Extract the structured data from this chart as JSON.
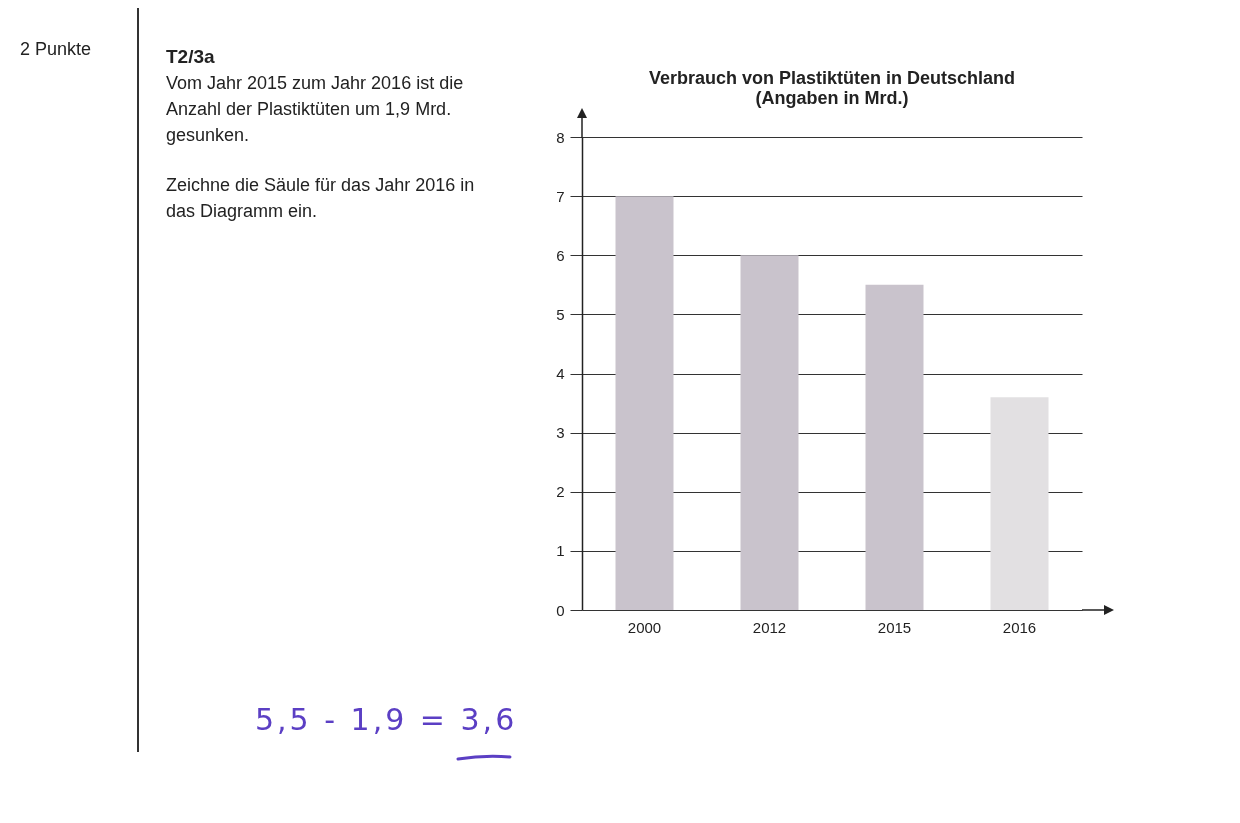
{
  "chart_data": {
    "type": "bar",
    "title": "Verbrauch von Plastiktüten in Deutschland",
    "subtitle": "(Angaben in Mrd.)",
    "categories": [
      "2000",
      "2012",
      "2015",
      "2016"
    ],
    "values": [
      7.0,
      6.0,
      5.5,
      3.6
    ],
    "colors": [
      "#c9c3cc",
      "#c9c3cc",
      "#c9c3cc",
      "#e2e0e2"
    ],
    "ylim": [
      0,
      8
    ],
    "yticks": [
      0,
      1,
      2,
      3,
      4,
      5,
      6,
      7,
      8
    ],
    "grid": "y",
    "annotations": [
      "2 Punkte",
      "T2/3a",
      "Vom Jahr 2015 zum Jahr 2016 ist die Anzahl der Plastiktüten um 1,9 Mrd. gesunken.",
      "Zeichne die Säule für das Jahr 2016 in das Diagramm ein.",
      "5,5 - 1,9 = 3,6"
    ]
  }
}
